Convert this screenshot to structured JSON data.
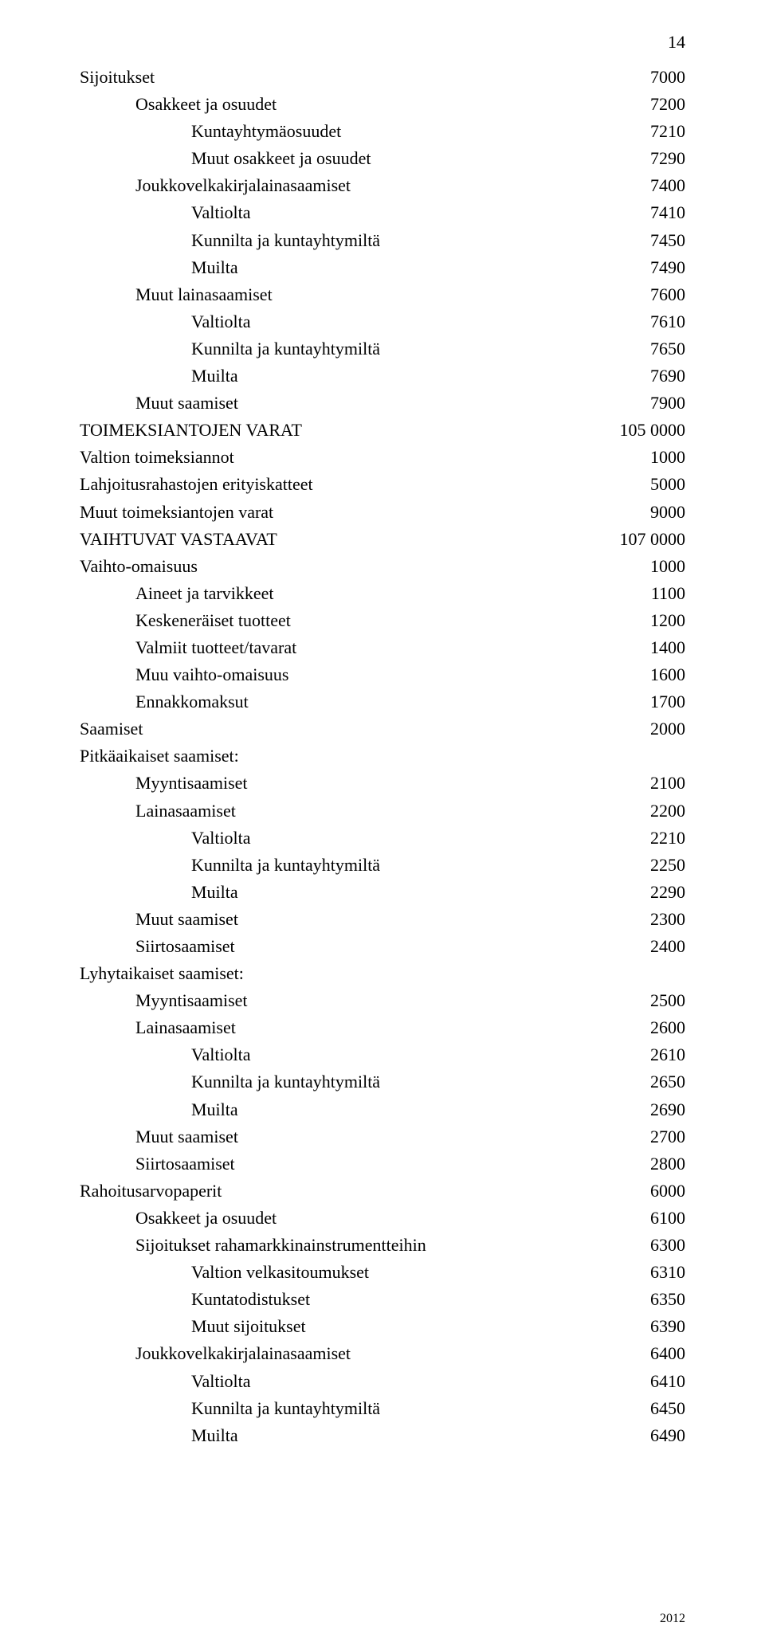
{
  "page_number": "14",
  "footer_year": "2012",
  "text_color": "#000000",
  "background_color": "#ffffff",
  "font_size_pt": 16,
  "rows": [
    {
      "indent": 0,
      "label": "Sijoitukset",
      "value": "7000"
    },
    {
      "indent": 1,
      "label": "Osakkeet ja osuudet",
      "value": "7200"
    },
    {
      "indent": 2,
      "label": "Kuntayhtymäosuudet",
      "value": "7210"
    },
    {
      "indent": 2,
      "label": "Muut osakkeet ja osuudet",
      "value": "7290"
    },
    {
      "indent": 1,
      "label": "Joukkovelkakirjalainasaamiset",
      "value": "7400"
    },
    {
      "indent": 2,
      "label": "Valtiolta",
      "value": "7410"
    },
    {
      "indent": 2,
      "label": "Kunnilta ja kuntayhtymiltä",
      "value": "7450"
    },
    {
      "indent": 2,
      "label": "Muilta",
      "value": "7490"
    },
    {
      "indent": 1,
      "label": "Muut lainasaamiset",
      "value": "7600"
    },
    {
      "indent": 2,
      "label": "Valtiolta",
      "value": "7610"
    },
    {
      "indent": 2,
      "label": "Kunnilta ja kuntayhtymiltä",
      "value": "7650"
    },
    {
      "indent": 2,
      "label": "Muilta",
      "value": "7690"
    },
    {
      "indent": 1,
      "label": "Muut saamiset",
      "value": "7900"
    },
    {
      "indent": 0,
      "label": "TOIMEKSIANTOJEN VARAT",
      "value": "105 0000"
    },
    {
      "indent": 0,
      "label": "Valtion toimeksiannot",
      "value": "1000"
    },
    {
      "indent": 0,
      "label": "Lahjoitusrahastojen erityiskatteet",
      "value": "5000"
    },
    {
      "indent": 0,
      "label": "Muut toimeksiantojen varat",
      "value": "9000"
    },
    {
      "indent": 0,
      "label": "VAIHTUVAT VASTAAVAT",
      "value": "107 0000"
    },
    {
      "indent": 0,
      "label": "Vaihto-omaisuus",
      "value": "1000"
    },
    {
      "indent": 1,
      "label": "Aineet ja tarvikkeet",
      "value": "1100"
    },
    {
      "indent": 1,
      "label": "Keskeneräiset tuotteet",
      "value": "1200"
    },
    {
      "indent": 1,
      "label": "Valmiit tuotteet/tavarat",
      "value": "1400"
    },
    {
      "indent": 1,
      "label": "Muu vaihto-omaisuus",
      "value": "1600"
    },
    {
      "indent": 1,
      "label": "Ennakkomaksut",
      "value": "1700"
    },
    {
      "indent": 0,
      "label": "Saamiset",
      "value": "2000"
    },
    {
      "indent": 0,
      "label": "Pitkäaikaiset saamiset:",
      "value": ""
    },
    {
      "indent": 1,
      "label": "Myyntisaamiset",
      "value": "2100"
    },
    {
      "indent": 1,
      "label": "Lainasaamiset",
      "value": "2200"
    },
    {
      "indent": 2,
      "label": "Valtiolta",
      "value": "2210"
    },
    {
      "indent": 2,
      "label": "Kunnilta ja kuntayhtymiltä",
      "value": "2250"
    },
    {
      "indent": 2,
      "label": "Muilta",
      "value": "2290"
    },
    {
      "indent": 1,
      "label": "Muut saamiset",
      "value": "2300"
    },
    {
      "indent": 1,
      "label": "Siirtosaamiset",
      "value": "2400"
    },
    {
      "indent": 0,
      "label": "Lyhytaikaiset saamiset:",
      "value": ""
    },
    {
      "indent": 1,
      "label": "Myyntisaamiset",
      "value": "2500"
    },
    {
      "indent": 1,
      "label": "Lainasaamiset",
      "value": "2600"
    },
    {
      "indent": 2,
      "label": "Valtiolta",
      "value": "2610"
    },
    {
      "indent": 2,
      "label": "Kunnilta ja kuntayhtymiltä",
      "value": "2650"
    },
    {
      "indent": 2,
      "label": "Muilta",
      "value": "2690"
    },
    {
      "indent": 1,
      "label": "Muut saamiset",
      "value": "2700"
    },
    {
      "indent": 1,
      "label": "Siirtosaamiset",
      "value": "2800"
    },
    {
      "indent": 0,
      "label": "Rahoitusarvopaperit",
      "value": "6000"
    },
    {
      "indent": 1,
      "label": "Osakkeet ja osuudet",
      "value": "6100"
    },
    {
      "indent": 1,
      "label": "Sijoitukset rahamarkkinainstrumentteihin",
      "value": "6300"
    },
    {
      "indent": 2,
      "label": "Valtion velkasitoumukset",
      "value": "6310"
    },
    {
      "indent": 2,
      "label": "Kuntatodistukset",
      "value": "6350"
    },
    {
      "indent": 2,
      "label": "Muut sijoitukset",
      "value": "6390"
    },
    {
      "indent": 1,
      "label": "Joukkovelkakirjalainasaamiset",
      "value": "6400"
    },
    {
      "indent": 2,
      "label": "Valtiolta",
      "value": "6410"
    },
    {
      "indent": 2,
      "label": "Kunnilta ja kuntayhtymiltä",
      "value": "6450"
    },
    {
      "indent": 2,
      "label": "Muilta",
      "value": "6490"
    }
  ]
}
